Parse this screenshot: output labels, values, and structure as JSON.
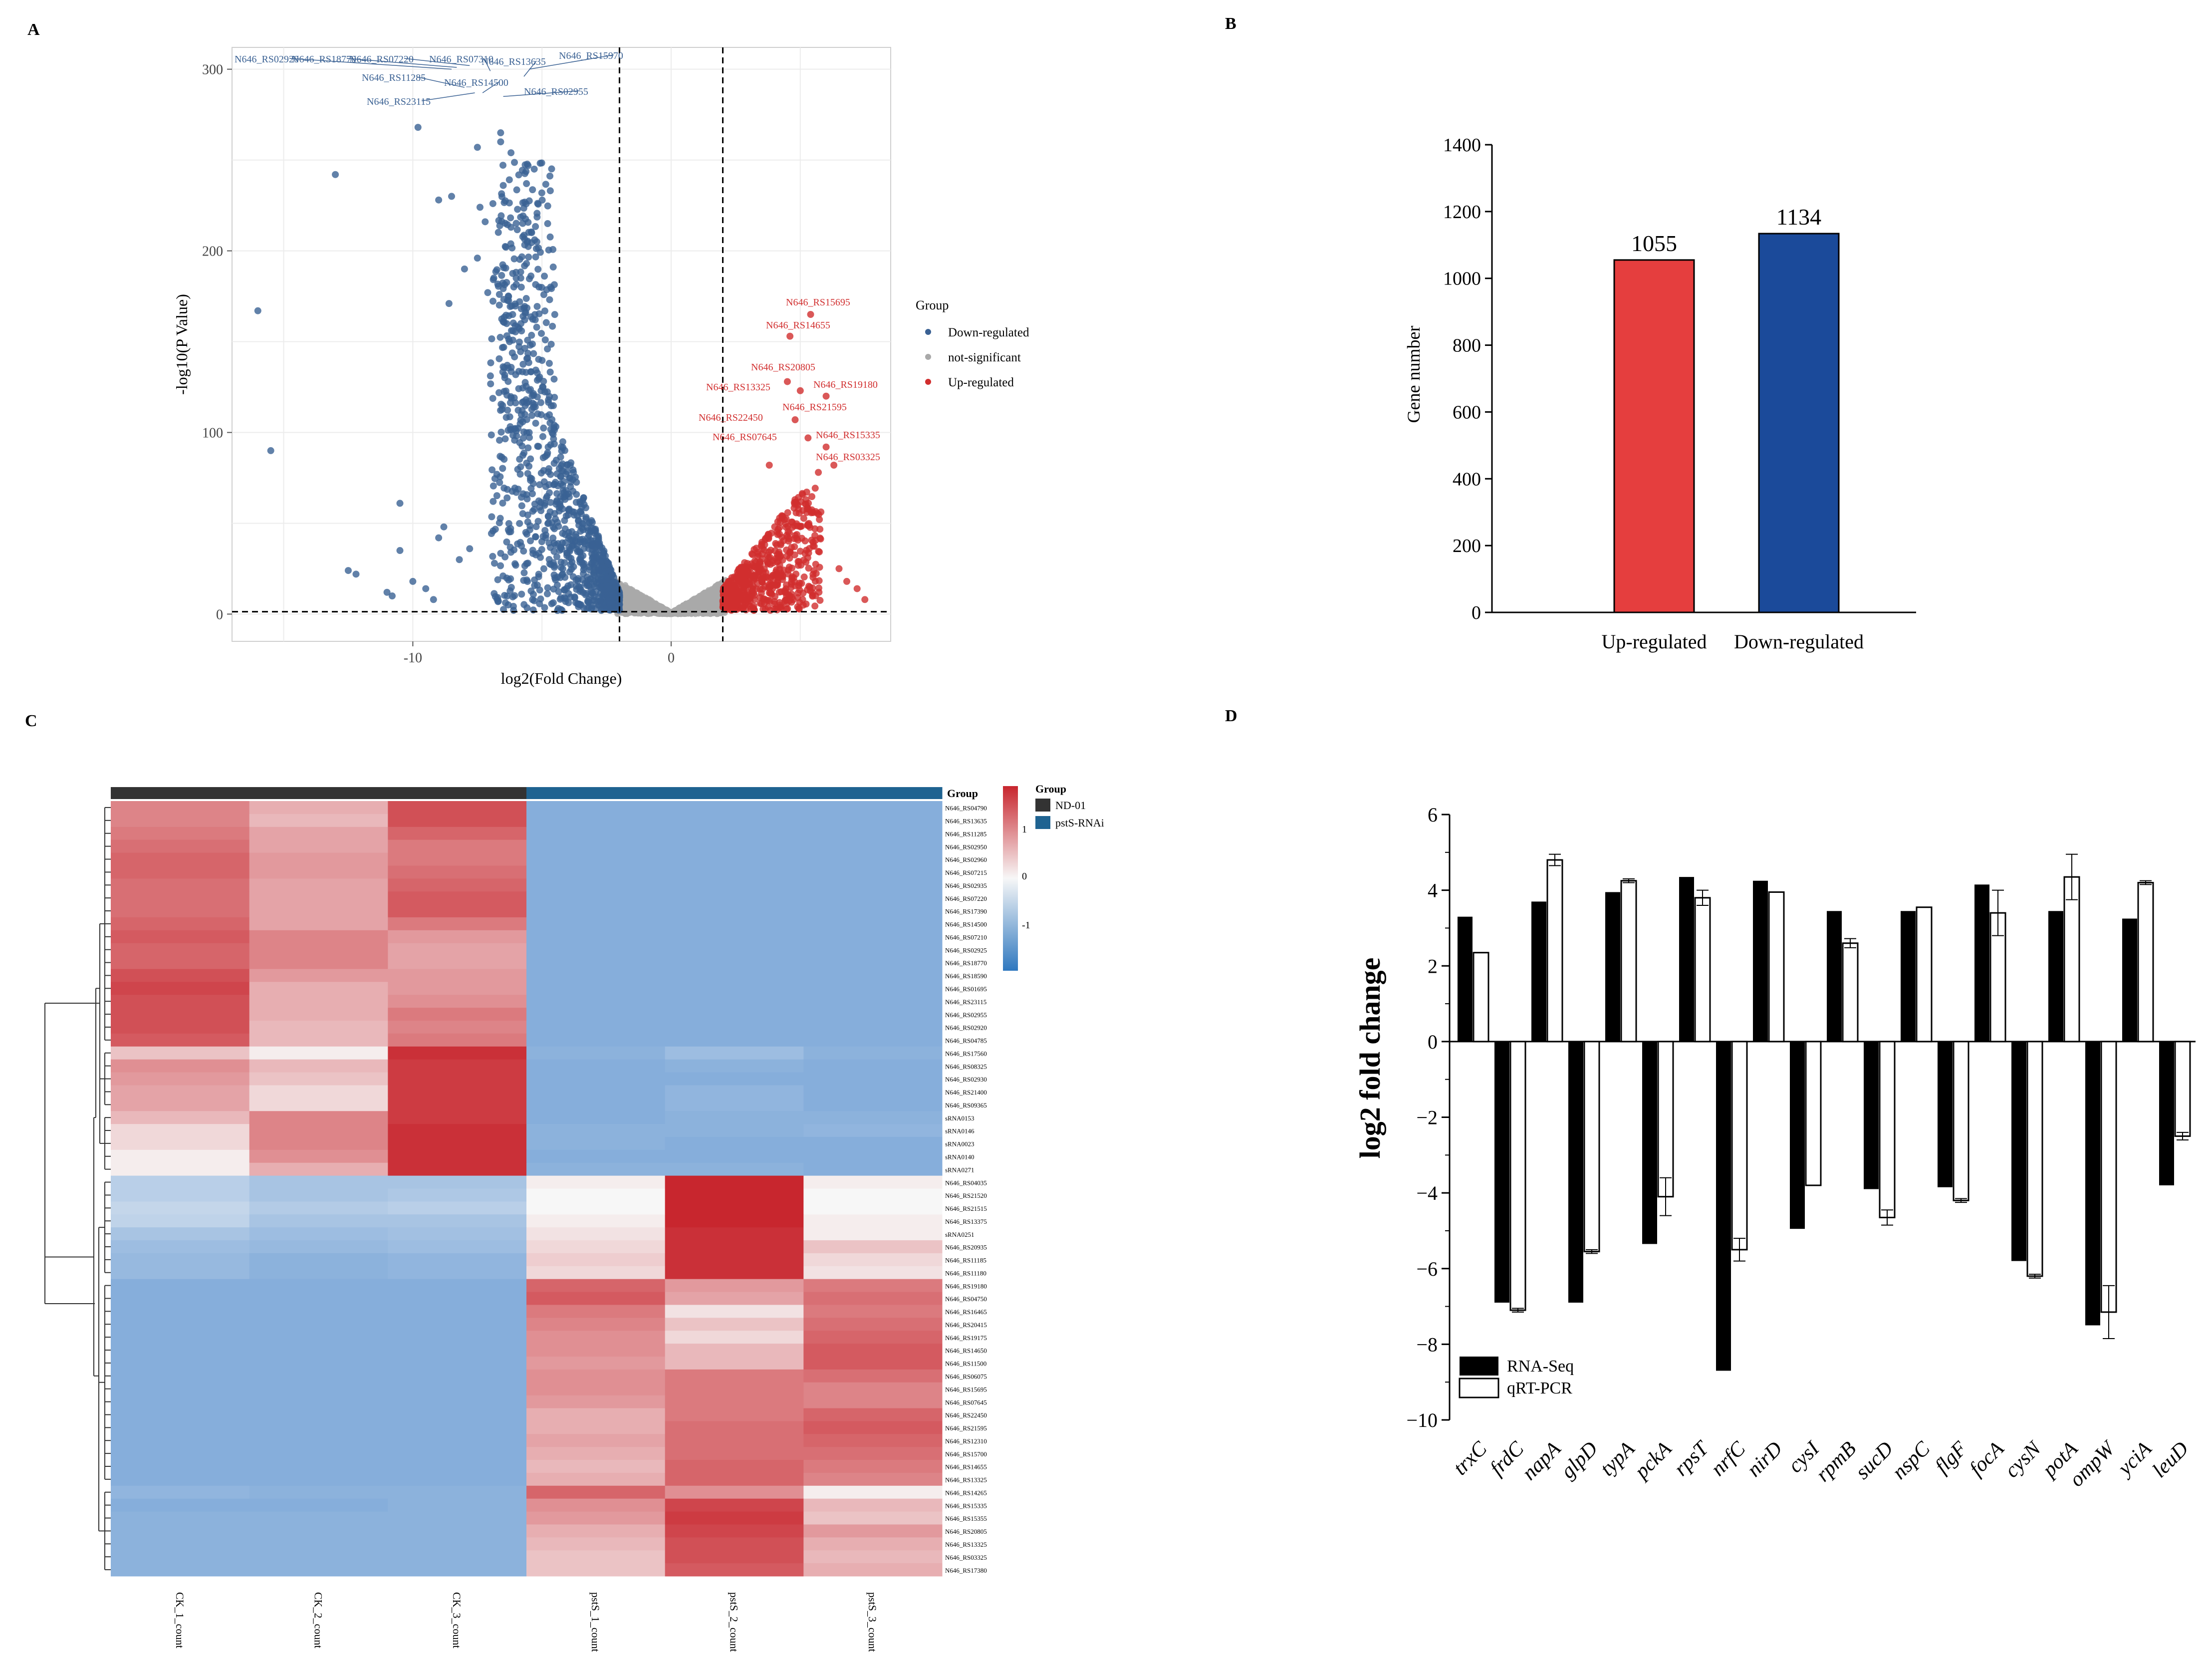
{
  "panel_labels": [
    "A",
    "B",
    "C",
    "D"
  ],
  "colors": {
    "down": "#3A6193",
    "ns": "#A9A9A9",
    "up": "#D12E2E",
    "bar_up": "#E53E3E",
    "bar_down": "#1B4A9A",
    "heat_high": "#C8262E",
    "heat_mid": "#F7F7F7",
    "heat_low": "#86AEDB",
    "nd01": "#333333",
    "pstsrnai": "#1F6391"
  },
  "chart_data": [
    {
      "id": "A",
      "type": "scatter",
      "title": "",
      "xlabel": "log2(Fold Change)",
      "ylabel": "-log10(P Value)",
      "xlim": [
        -17,
        8.5
      ],
      "ylim": [
        -15,
        312
      ],
      "xticks": [
        -10,
        0
      ],
      "yticks": [
        0,
        100,
        200,
        300
      ],
      "thresholds": {
        "x": [
          -2,
          2
        ],
        "y": 1.3
      },
      "legend": {
        "title": "Group",
        "entries": [
          "Down-regulated",
          "not-significant",
          "Up-regulated"
        ]
      },
      "labels_down": [
        "N646_RS02920",
        "N646_RS18770",
        "N646_RS07220",
        "N646_RS07310",
        "N646_RS13635",
        "N646_RS15970",
        "N646_RS11285",
        "N646_RS14500",
        "N646_RS02955",
        "N646_RS23115"
      ],
      "labels_up": [
        "N646_RS15695",
        "N646_RS14655",
        "N646_RS20805",
        "N646_RS13325",
        "N646_RS19180",
        "N646_RS21595",
        "N646_RS22450",
        "N646_RS15335",
        "N646_RS07645",
        "N646_RS03325"
      ],
      "points_down": [
        [
          -16,
          167
        ],
        [
          -15.5,
          90
        ],
        [
          -13,
          242
        ],
        [
          -10.5,
          61
        ],
        [
          -9.8,
          268
        ],
        [
          -9,
          228
        ],
        [
          -8.5,
          230
        ],
        [
          -8.6,
          171
        ],
        [
          -8,
          190
        ],
        [
          -7.5,
          257
        ],
        [
          -7.5,
          196
        ],
        [
          -7.2,
          216
        ],
        [
          -7.4,
          224
        ],
        [
          -7.1,
          177
        ],
        [
          -6.9,
          226
        ],
        [
          -6.6,
          260
        ],
        [
          -6.6,
          265
        ],
        [
          -6.5,
          236
        ],
        [
          -6.4,
          202
        ],
        [
          -6.2,
          254
        ],
        [
          -6.2,
          213
        ],
        [
          -6,
          185
        ],
        [
          -5.8,
          180
        ],
        [
          -5.6,
          193
        ],
        [
          -5.6,
          237
        ],
        [
          -5.4,
          210
        ],
        [
          -5.3,
          245
        ],
        [
          -5.2,
          205
        ],
        [
          -12.5,
          24
        ],
        [
          -11,
          12
        ],
        [
          -10.5,
          35
        ],
        [
          -10,
          18
        ],
        [
          -9.5,
          14
        ],
        [
          -9,
          42
        ],
        [
          -8.8,
          48
        ],
        [
          -12.2,
          22
        ],
        [
          -8.2,
          30
        ],
        [
          -7.8,
          36
        ],
        [
          -10.8,
          10
        ],
        [
          -9.2,
          8
        ]
      ],
      "points_up": [
        [
          5.4,
          165
        ],
        [
          4.6,
          153
        ],
        [
          4.5,
          128
        ],
        [
          5,
          123
        ],
        [
          6,
          120
        ],
        [
          4.8,
          107
        ],
        [
          5.3,
          97
        ],
        [
          6,
          92
        ],
        [
          3.8,
          82
        ],
        [
          5.7,
          78
        ],
        [
          6.3,
          82
        ],
        [
          6.8,
          18
        ],
        [
          7.2,
          14
        ],
        [
          7.5,
          8
        ],
        [
          6.5,
          25
        ]
      ]
    },
    {
      "id": "B",
      "type": "bar",
      "categories": [
        "Up-regulated",
        "Down-regulated"
      ],
      "values": [
        1055,
        1134
      ],
      "data_labels": [
        "1055",
        "1134"
      ],
      "title": "",
      "xlabel": "",
      "ylabel": "Gene number",
      "ylim": [
        0,
        1400
      ],
      "yticks": [
        0,
        200,
        400,
        600,
        800,
        1000,
        1200,
        1400
      ]
    },
    {
      "id": "C",
      "type": "heatmap",
      "columns": [
        "CK_1_count",
        "CK_2_count",
        "CK_3_count",
        "pstS_1_count",
        "pstS_2_count",
        "pstS_3_count"
      ],
      "column_groups": [
        "ND-01",
        "ND-01",
        "ND-01",
        "pstS-RNAi",
        "pstS-RNAi",
        "pstS-RNAi"
      ],
      "annotation_title": "Group",
      "legend": {
        "title": "Group",
        "entries": [
          "ND-01",
          "pstS-RNAi"
        ]
      },
      "scale_ticks": [
        "1",
        "0",
        "-1"
      ],
      "rows": [
        "N646_RS04790",
        "N646_RS13635",
        "N646_RS11285",
        "N646_RS02950",
        "N646_RS02960",
        "N646_RS07215",
        "N646_RS02935",
        "N646_RS07220",
        "N646_RS17390",
        "N646_RS14500",
        "N646_RS07210",
        "N646_RS02925",
        "N646_RS18770",
        "N646_RS18590",
        "N646_RS01695",
        "N646_RS23115",
        "N646_RS02955",
        "N646_RS02920",
        "N646_RS04785",
        "N646_RS17560",
        "N646_RS08325",
        "N646_RS02930",
        "N646_RS21400",
        "N646_RS09365",
        "sRNA0153",
        "sRNA0146",
        "sRNA0023",
        "sRNA0140",
        "sRNA0271",
        "N646_RS04035",
        "N646_RS21520",
        "N646_RS21515",
        "N646_RS13375",
        "sRNA0251",
        "N646_RS20935",
        "N646_RS11185",
        "N646_RS11180",
        "N646_RS19180",
        "N646_RS04750",
        "N646_RS16465",
        "N646_RS20415",
        "N646_RS19175",
        "N646_RS14650",
        "N646_RS11500",
        "N646_RS06075",
        "N646_RS15695",
        "N646_RS07645",
        "N646_RS22450",
        "N646_RS21595",
        "N646_RS12310",
        "N646_RS15700",
        "N646_RS14655",
        "N646_RS13325",
        "N646_RS14265",
        "N646_RS15335",
        "N646_RS15355",
        "N646_RS20805",
        "N646_RS13325",
        "N646_RS03325",
        "N646_RS17380"
      ],
      "values": [
        [
          0.55,
          0.35,
          0.8,
          -1,
          -1,
          -1
        ],
        [
          0.55,
          0.3,
          0.8,
          -1,
          -1,
          -1
        ],
        [
          0.6,
          0.4,
          0.7,
          -1,
          -1,
          -1
        ],
        [
          0.65,
          0.4,
          0.6,
          -1,
          -1,
          -1
        ],
        [
          0.7,
          0.45,
          0.6,
          -1,
          -1,
          -1
        ],
        [
          0.7,
          0.45,
          0.65,
          -1,
          -1,
          -1
        ],
        [
          0.65,
          0.4,
          0.7,
          -1,
          -1,
          -1
        ],
        [
          0.65,
          0.4,
          0.75,
          -1,
          -1,
          -1
        ],
        [
          0.65,
          0.4,
          0.75,
          -1,
          -1,
          -1
        ],
        [
          0.7,
          0.4,
          0.6,
          -1,
          -1,
          -1
        ],
        [
          0.75,
          0.55,
          0.45,
          -1,
          -1,
          -1
        ],
        [
          0.7,
          0.55,
          0.4,
          -1,
          -1,
          -1
        ],
        [
          0.7,
          0.55,
          0.4,
          -1,
          -1,
          -1
        ],
        [
          0.8,
          0.45,
          0.45,
          -1,
          -1,
          -1
        ],
        [
          0.85,
          0.35,
          0.45,
          -1,
          -1,
          -1
        ],
        [
          0.8,
          0.35,
          0.5,
          -1,
          -1,
          -1
        ],
        [
          0.8,
          0.35,
          0.6,
          -1,
          -1,
          -1
        ],
        [
          0.8,
          0.3,
          0.55,
          -1,
          -1,
          -1
        ],
        [
          0.75,
          0.3,
          0.6,
          -1,
          -1,
          -1
        ],
        [
          0.25,
          0.05,
          0.95,
          -0.95,
          -0.8,
          -0.95
        ],
        [
          0.5,
          0.3,
          0.9,
          -1,
          -0.95,
          -1
        ],
        [
          0.45,
          0.25,
          0.9,
          -1,
          -1,
          -1
        ],
        [
          0.4,
          0.15,
          0.9,
          -1,
          -0.9,
          -1
        ],
        [
          0.4,
          0.15,
          0.9,
          -1,
          -0.9,
          -1
        ],
        [
          0.3,
          0.55,
          0.9,
          -1,
          -0.95,
          -0.95
        ],
        [
          0.15,
          0.55,
          0.95,
          -0.95,
          -0.95,
          -0.9
        ],
        [
          0.15,
          0.55,
          0.95,
          -0.95,
          -1,
          -1
        ],
        [
          0.05,
          0.5,
          0.95,
          -1,
          -1,
          -1
        ],
        [
          0.05,
          0.35,
          0.95,
          -0.95,
          -0.95,
          -1
        ],
        [
          -0.55,
          -0.7,
          -0.7,
          0.05,
          1,
          0.05
        ],
        [
          -0.55,
          -0.7,
          -0.65,
          0.0,
          1,
          0.0
        ],
        [
          -0.45,
          -0.6,
          -0.55,
          0.0,
          1,
          0.0
        ],
        [
          -0.5,
          -0.7,
          -0.7,
          0.05,
          1,
          0.05
        ],
        [
          -0.7,
          -0.8,
          -0.75,
          0.1,
          0.95,
          0.05
        ],
        [
          -0.8,
          -0.85,
          -0.8,
          0.15,
          0.95,
          0.25
        ],
        [
          -0.85,
          -0.95,
          -0.9,
          0.2,
          0.95,
          0.15
        ],
        [
          -0.85,
          -0.95,
          -0.9,
          0.15,
          0.95,
          0.1
        ],
        [
          -1,
          -1,
          -1,
          0.7,
          0.45,
          0.6
        ],
        [
          -1,
          -1,
          -1,
          0.75,
          0.4,
          0.65
        ],
        [
          -1,
          -1,
          -1,
          0.6,
          0.1,
          0.6
        ],
        [
          -1,
          -1,
          -1,
          0.55,
          0.25,
          0.65
        ],
        [
          -1,
          -1,
          -1,
          0.5,
          0.15,
          0.7
        ],
        [
          -1,
          -1,
          -1,
          0.5,
          0.3,
          0.75
        ],
        [
          -1,
          -1,
          -1,
          0.45,
          0.3,
          0.75
        ],
        [
          -1,
          -1,
          -1,
          0.5,
          0.6,
          0.65
        ],
        [
          -1,
          -1,
          -1,
          0.5,
          0.6,
          0.55
        ],
        [
          -1,
          -1,
          -1,
          0.45,
          0.6,
          0.55
        ],
        [
          -1,
          -1,
          -1,
          0.35,
          0.6,
          0.7
        ],
        [
          -1,
          -1,
          -1,
          0.35,
          0.65,
          0.75
        ],
        [
          -1,
          -1,
          -1,
          0.4,
          0.65,
          0.7
        ],
        [
          -1,
          -1,
          -1,
          0.35,
          0.65,
          0.65
        ],
        [
          -1,
          -1,
          -1,
          0.3,
          0.7,
          0.6
        ],
        [
          -1,
          -1,
          -1,
          0.35,
          0.7,
          0.55
        ],
        [
          -0.9,
          -0.95,
          -0.95,
          0.7,
          0.5,
          0.05
        ],
        [
          -1,
          -1,
          -0.95,
          0.5,
          0.85,
          0.3
        ],
        [
          -0.95,
          -0.95,
          -0.95,
          0.45,
          0.9,
          0.25
        ],
        [
          -0.95,
          -0.95,
          -0.95,
          0.35,
          0.85,
          0.45
        ],
        [
          -0.95,
          -0.95,
          -0.95,
          0.3,
          0.8,
          0.35
        ],
        [
          -0.95,
          -0.95,
          -0.95,
          0.25,
          0.8,
          0.3
        ],
        [
          -0.95,
          -0.95,
          -0.95,
          0.25,
          0.75,
          0.35
        ]
      ]
    },
    {
      "id": "D",
      "type": "bar",
      "title": "",
      "xlabel": "",
      "ylabel": "log2 fold change",
      "ylim": [
        -10,
        6
      ],
      "yticks": [
        6,
        4,
        2,
        0,
        -2,
        -4,
        -6,
        -8,
        -10
      ],
      "categories": [
        "trxC",
        "frdC",
        "napA",
        "glpD",
        "typA",
        "pckA",
        "rpsT",
        "nrfC",
        "nirD",
        "cysI",
        "rpmB",
        "sucD",
        "nspC",
        "flgF",
        "focA",
        "cysN",
        "potA",
        "ompW",
        "yciA",
        "leuD"
      ],
      "series": [
        {
          "name": "RNA-Seq",
          "values": [
            3.3,
            -6.9,
            3.7,
            -6.9,
            3.95,
            -5.35,
            4.35,
            -8.7,
            4.25,
            -4.95,
            3.45,
            -3.9,
            3.45,
            -3.85,
            4.15,
            -5.8,
            3.45,
            -7.5,
            3.25,
            -3.8
          ]
        },
        {
          "name": "qRT-PCR",
          "values": [
            2.35,
            -7.1,
            4.8,
            -5.55,
            4.25,
            -4.1,
            3.8,
            -5.5,
            3.95,
            -3.8,
            2.6,
            -4.65,
            3.55,
            -4.2,
            3.4,
            -6.2,
            4.35,
            -7.15,
            4.2,
            -2.5
          ]
        }
      ],
      "errors_qrt": [
        0,
        0.05,
        0.15,
        0.05,
        0.05,
        0.5,
        0.2,
        0.3,
        0,
        0,
        0.12,
        0.2,
        0,
        0.05,
        0.6,
        0.05,
        0.6,
        0.7,
        0.05,
        0.1
      ]
    }
  ]
}
